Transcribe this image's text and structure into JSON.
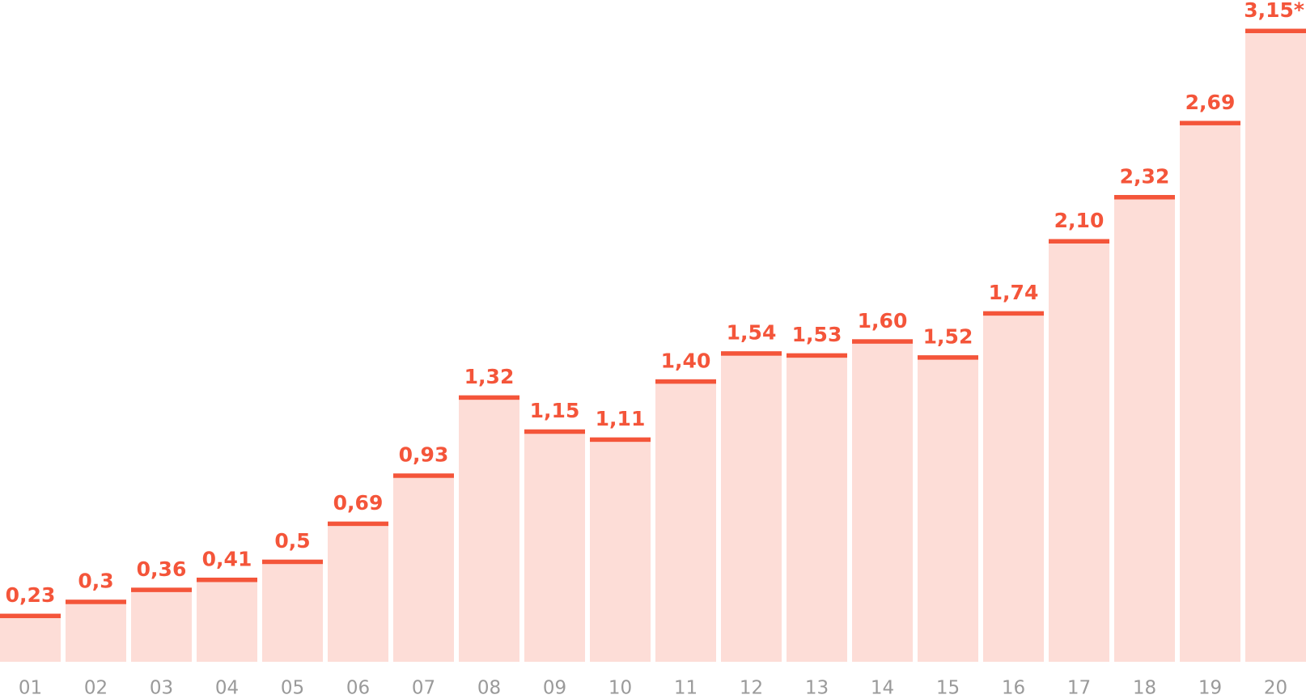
{
  "chart_data": {
    "type": "bar",
    "categories": [
      "01",
      "02",
      "03",
      "04",
      "05",
      "06",
      "07",
      "08",
      "09",
      "10",
      "11",
      "12",
      "13",
      "14",
      "15",
      "16",
      "17",
      "18",
      "19",
      "20"
    ],
    "values": [
      0.23,
      0.3,
      0.36,
      0.41,
      0.5,
      0.69,
      0.93,
      1.32,
      1.15,
      1.11,
      1.4,
      1.54,
      1.53,
      1.6,
      1.52,
      1.74,
      2.1,
      2.32,
      2.69,
      3.15
    ],
    "value_labels": [
      "0,23",
      "0,3",
      "0,36",
      "0,41",
      "0,5",
      "0,69",
      "0,93",
      "1,32",
      "1,15",
      "1,11",
      "1,40",
      "1,54",
      "1,53",
      "1,60",
      "1,52",
      "1,74",
      "2,10",
      "2,32",
      "2,69",
      "3,15*"
    ],
    "color": "#fdddd7",
    "edge_color": "#f4553a"
  }
}
